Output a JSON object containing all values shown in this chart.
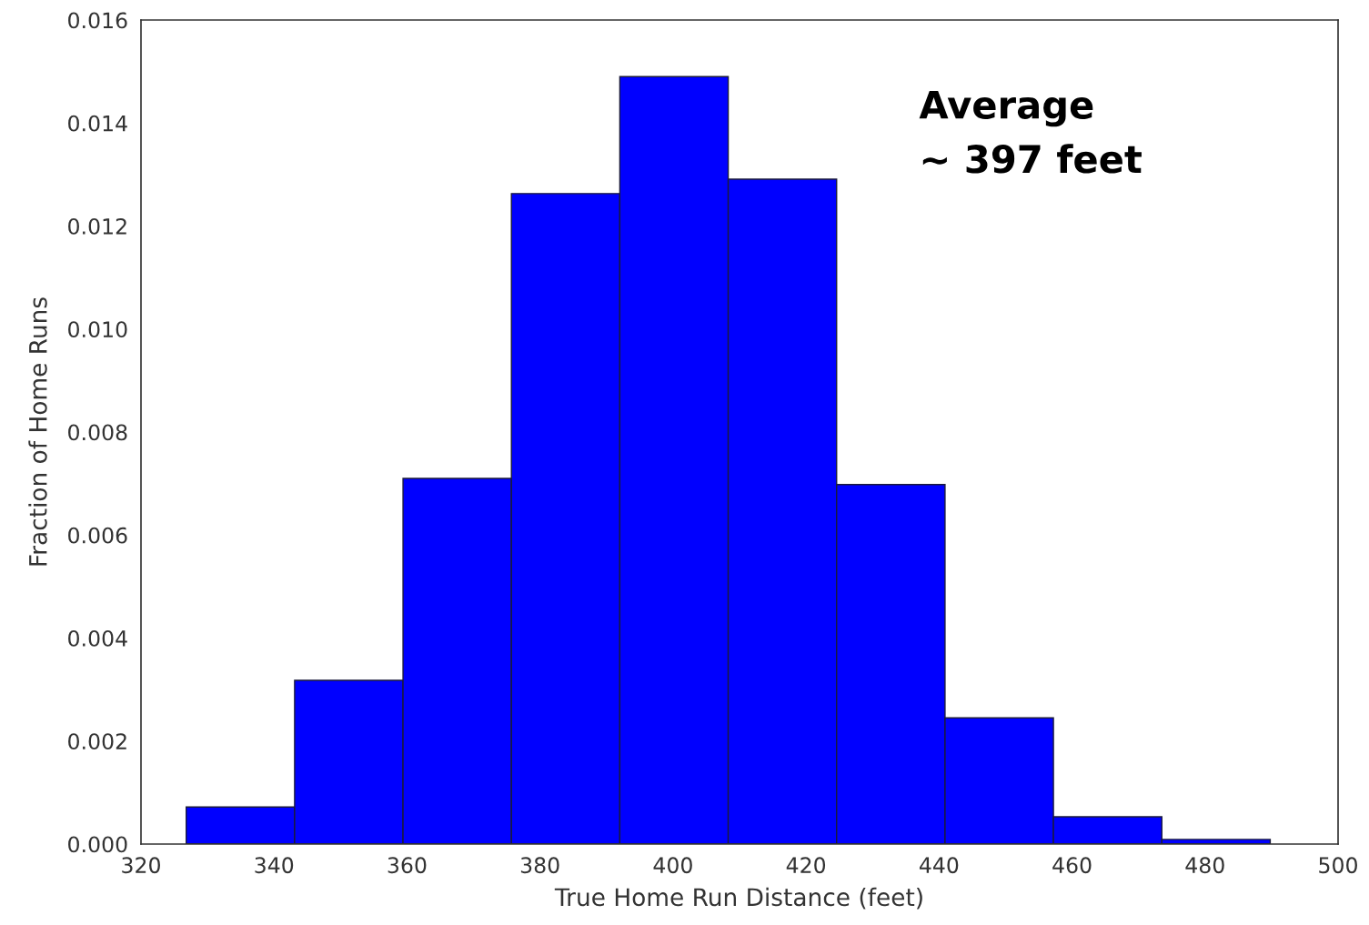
{
  "chart_data": {
    "type": "histogram",
    "xlabel": "True Home Run Distance (feet)",
    "ylabel": "Fraction of Home Runs",
    "bins": [
      326.8,
      343.1,
      359.4,
      375.7,
      392.0,
      408.3,
      424.6,
      440.9,
      457.2,
      473.5,
      489.8
    ],
    "values": [
      0.00072,
      0.00318,
      0.0071,
      0.01263,
      0.0149,
      0.01291,
      0.00698,
      0.00245,
      0.00053,
      9e-05
    ],
    "color": "#0000ff",
    "xlim": [
      320,
      500
    ],
    "xticks": [
      320,
      340,
      360,
      380,
      400,
      420,
      440,
      460,
      480,
      500
    ],
    "ylim": [
      0,
      0.016
    ],
    "yticks": [
      {
        "value": 0,
        "label": "0.000"
      },
      {
        "value": 0.002,
        "label": "0.002"
      },
      {
        "value": 0.004,
        "label": "0.004"
      },
      {
        "value": 0.006,
        "label": "0.006"
      },
      {
        "value": 0.008,
        "label": "0.008"
      },
      {
        "value": 0.01,
        "label": "0.010"
      },
      {
        "value": 0.012,
        "label": "0.012"
      },
      {
        "value": 0.014,
        "label": "0.014"
      },
      {
        "value": 0.016,
        "label": "0.016"
      }
    ],
    "grid": false,
    "annotations": [
      "Average\n~ 397 feet"
    ]
  }
}
